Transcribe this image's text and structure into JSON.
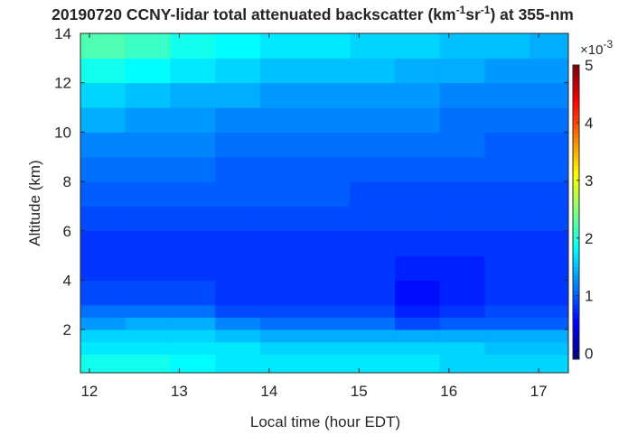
{
  "chart_data": {
    "type": "heatmap",
    "title": [
      "20190720 CCNY-lidar total attenuated backscatter (km",
      "-1",
      "sr",
      "-1",
      ") at 355-nm"
    ],
    "x_label": "Local time (hour EDT)",
    "y_label": "Altitude (km)",
    "colorbar_multiplier": [
      "×10",
      "-3"
    ],
    "colormap": "jet",
    "x": [
      11.9,
      12.4,
      12.9,
      13.4,
      13.9,
      14.4,
      14.9,
      15.4,
      15.9,
      16.4,
      16.9,
      17.33
    ],
    "y": [
      0.25,
      1,
      1.5,
      2,
      2.5,
      3,
      4,
      5,
      6,
      7,
      8,
      9,
      10,
      11,
      12,
      13,
      14
    ],
    "z": [
      [
        1.9,
        1.9,
        1.8,
        1.7,
        1.7,
        1.7,
        1.7,
        1.7,
        1.6,
        1.6,
        1.6
      ],
      [
        1.7,
        1.7,
        1.7,
        1.7,
        1.6,
        1.6,
        1.6,
        1.6,
        1.6,
        1.5,
        1.5
      ],
      [
        1.6,
        1.6,
        1.6,
        1.5,
        1.4,
        1.4,
        1.4,
        1.4,
        1.4,
        1.4,
        1.4
      ],
      [
        1.3,
        1.4,
        1.4,
        1.2,
        1.1,
        1.1,
        1.1,
        0.9,
        1.0,
        1.0,
        1.0
      ],
      [
        1.1,
        1.1,
        1.1,
        0.9,
        0.9,
        0.9,
        0.9,
        0.7,
        0.8,
        0.9,
        0.9
      ],
      [
        0.9,
        0.9,
        0.9,
        0.8,
        0.8,
        0.8,
        0.8,
        0.6,
        0.7,
        0.8,
        0.8
      ],
      [
        0.8,
        0.8,
        0.8,
        0.8,
        0.8,
        0.8,
        0.8,
        0.7,
        0.7,
        0.8,
        0.8
      ],
      [
        0.8,
        0.8,
        0.8,
        0.8,
        0.8,
        0.8,
        0.8,
        0.8,
        0.8,
        0.8,
        0.8
      ],
      [
        0.9,
        0.9,
        0.9,
        0.9,
        0.9,
        0.9,
        0.9,
        0.9,
        0.9,
        0.9,
        0.9
      ],
      [
        1.0,
        1.0,
        1.0,
        1.0,
        1.0,
        1.0,
        0.9,
        0.9,
        0.9,
        0.9,
        0.9
      ],
      [
        1.1,
        1.1,
        1.1,
        1.0,
        1.0,
        1.0,
        1.0,
        1.0,
        1.0,
        1.0,
        1.0
      ],
      [
        1.2,
        1.2,
        1.2,
        1.1,
        1.1,
        1.1,
        1.1,
        1.1,
        1.1,
        1.0,
        1.0
      ],
      [
        1.4,
        1.3,
        1.3,
        1.2,
        1.2,
        1.2,
        1.2,
        1.2,
        1.1,
        1.1,
        1.1
      ],
      [
        1.6,
        1.5,
        1.4,
        1.4,
        1.3,
        1.3,
        1.3,
        1.3,
        1.2,
        1.2,
        1.2
      ],
      [
        1.9,
        1.8,
        1.7,
        1.6,
        1.5,
        1.5,
        1.5,
        1.4,
        1.4,
        1.3,
        1.3
      ],
      [
        2.2,
        2.1,
        1.9,
        1.8,
        1.7,
        1.7,
        1.6,
        1.6,
        1.5,
        1.5,
        1.4
      ]
    ],
    "xlim": [
      11.9,
      17.33
    ],
    "xticks": [
      12,
      13,
      14,
      15,
      16,
      17
    ],
    "ylim": [
      0.25,
      14
    ],
    "yticks": [
      2,
      4,
      6,
      8,
      10,
      12,
      14
    ],
    "clim": [
      -0.1,
      5
    ],
    "cticks": [
      0,
      1,
      2,
      3,
      4,
      5
    ]
  }
}
